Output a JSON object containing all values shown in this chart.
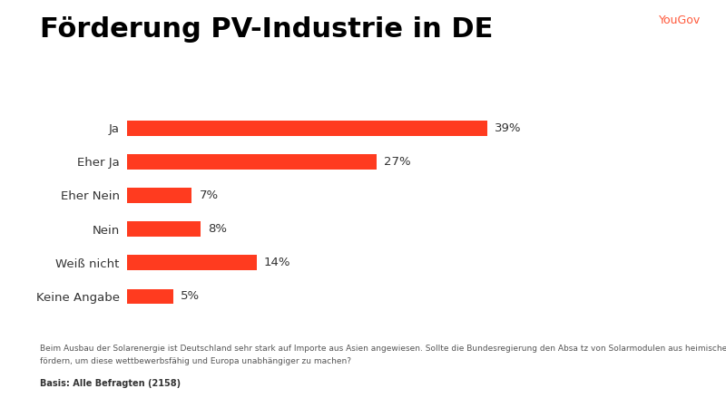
{
  "title": "Förderung PV-Industrie in DE",
  "categories": [
    "Ja",
    "Eher Ja",
    "Eher Nein",
    "Nein",
    "Weiß nicht",
    "Keine Angabe"
  ],
  "values": [
    39,
    27,
    7,
    8,
    14,
    5
  ],
  "bar_color": "#FF3B1F",
  "label_color": "#333333",
  "value_color": "#333333",
  "title_color": "#000000",
  "background_color": "#FFFFFF",
  "yougov_color": "#FF5A3C",
  "yougov_text": "YouGov",
  "footnote_line1": "Beim Ausbau der Solarenergie ist Deutschland sehr stark auf Importe aus Asien angewiesen. Sollte die Bundesregierung den Absa tz von Solarmodulen aus heimischen Solarfabriken für einen begrenzten Zeitraum gezielt",
  "footnote_line2": "fördern, um diese wettbewerbsfähig und Europa unabhängiger zu machen?",
  "basis": "Basis: Alle Befragten (2158)",
  "title_fontsize": 22,
  "label_fontsize": 9.5,
  "value_fontsize": 9.5,
  "footnote_fontsize": 6.5,
  "basis_fontsize": 7,
  "yougov_fontsize": 9,
  "bar_height": 0.45,
  "xlim": [
    0,
    55
  ]
}
